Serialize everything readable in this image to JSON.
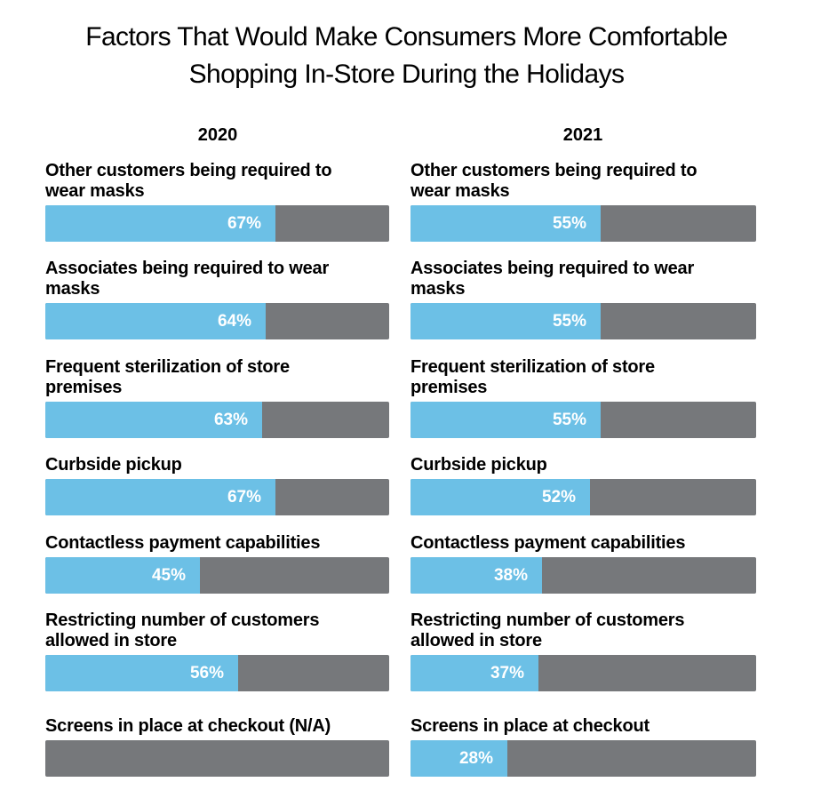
{
  "title": {
    "line1": "Factors That Would Make Consumers More Comfortable",
    "line2": "Shopping In-Store During the Holidays"
  },
  "colors": {
    "fill": "#6cc0e6",
    "track": "#76787b",
    "pct_text": "#ffffff"
  },
  "chart_data": {
    "type": "bar",
    "orientation": "horizontal",
    "title": "Factors That Would Make Consumers More Comfortable Shopping In-Store During the Holidays",
    "xlim": [
      0,
      100
    ],
    "unit": "%",
    "panels": [
      {
        "name": "2020",
        "categories": [
          "Other customers being required to wear masks",
          "Associates being required to wear masks",
          "Frequent sterilization of store premises",
          "Curbside pickup",
          "Contactless payment capabilities",
          "Restricting number of customers allowed in store",
          "Screens in place at checkout (N/A)"
        ],
        "values": [
          67,
          64,
          63,
          67,
          45,
          56,
          null
        ],
        "labels": [
          "67%",
          "64%",
          "63%",
          "67%",
          "45%",
          "56%",
          ""
        ]
      },
      {
        "name": "2021",
        "categories": [
          "Other customers being required to wear masks",
          "Associates being required to wear masks",
          "Frequent sterilization of store premises",
          "Curbside pickup",
          "Contactless payment capabilities",
          "Restricting number of customers allowed in store",
          "Screens in place at checkout"
        ],
        "values": [
          55,
          55,
          55,
          52,
          38,
          37,
          28
        ],
        "labels": [
          "55%",
          "55%",
          "55%",
          "52%",
          "38%",
          "37%",
          "28%"
        ]
      }
    ],
    "label_lines": {
      "2020": [
        [
          "Other customers being required to",
          "wear masks"
        ],
        [
          "Associates being required to wear",
          "masks"
        ],
        [
          "Frequent sterilization of store",
          "premises"
        ],
        [
          "Curbside pickup"
        ],
        [
          "Contactless payment capabilities"
        ],
        [
          "Restricting number of customers",
          "allowed in store"
        ],
        [
          "Screens in place at checkout (N/A)"
        ]
      ],
      "2021": [
        [
          "Other customers being required to",
          "wear masks"
        ],
        [
          "Associates being required to wear",
          "masks"
        ],
        [
          "Frequent sterilization of store",
          "premises"
        ],
        [
          "Curbside pickup"
        ],
        [
          "Contactless payment capabilities"
        ],
        [
          "Restricting number of customers",
          "allowed in store"
        ],
        [
          "Screens in place at checkout"
        ]
      ]
    }
  }
}
